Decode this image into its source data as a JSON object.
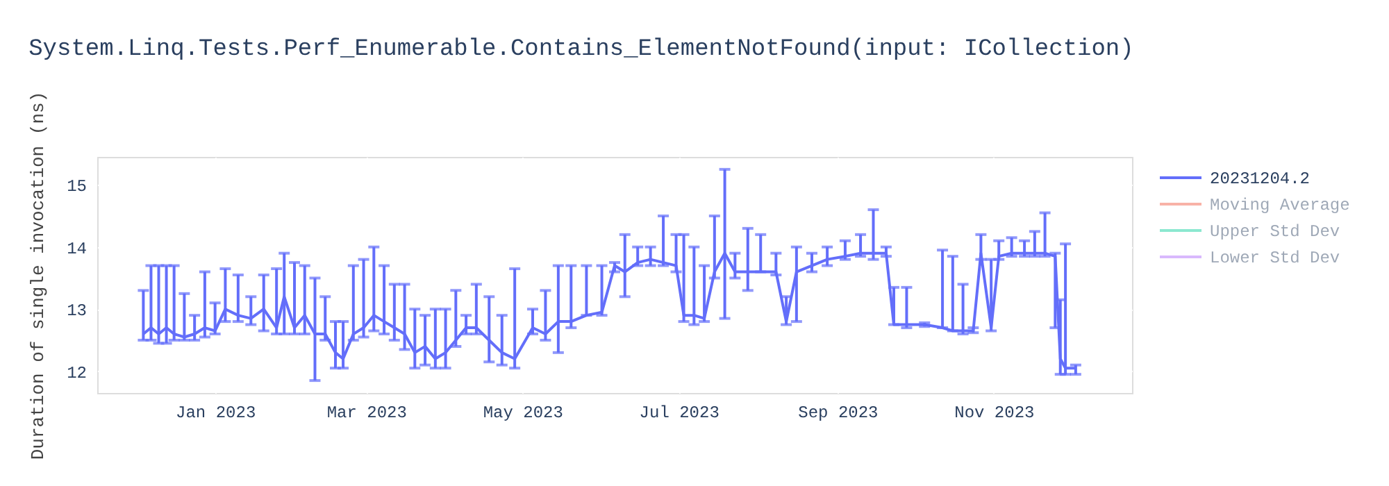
{
  "chart_data": {
    "type": "line",
    "title": "System.Linq.Tests.Perf_Enumerable.Contains_ElementNotFound(input: ICollection)",
    "ylabel": "Duration of single invocation (ns)",
    "x": [
      "2022-12-04",
      "2022-12-07",
      "2022-12-10",
      "2022-12-13",
      "2022-12-16",
      "2022-12-20",
      "2022-12-24",
      "2022-12-28",
      "2023-01-01",
      "2023-01-05",
      "2023-01-10",
      "2023-01-15",
      "2023-01-20",
      "2023-01-25",
      "2023-01-28",
      "2023-02-01",
      "2023-02-05",
      "2023-02-09",
      "2023-02-13",
      "2023-02-17",
      "2023-02-20",
      "2023-02-24",
      "2023-02-28",
      "2023-03-04",
      "2023-03-08",
      "2023-03-12",
      "2023-03-16",
      "2023-03-20",
      "2023-03-24",
      "2023-03-28",
      "2023-04-01",
      "2023-04-05",
      "2023-04-09",
      "2023-04-13",
      "2023-04-18",
      "2023-04-23",
      "2023-04-28",
      "2023-05-05",
      "2023-05-10",
      "2023-05-15",
      "2023-05-20",
      "2023-05-26",
      "2023-06-01",
      "2023-06-06",
      "2023-06-10",
      "2023-06-15",
      "2023-06-20",
      "2023-06-25",
      "2023-06-30",
      "2023-07-03",
      "2023-07-07",
      "2023-07-11",
      "2023-07-15",
      "2023-07-19",
      "2023-07-23",
      "2023-07-28",
      "2023-08-02",
      "2023-08-08",
      "2023-08-12",
      "2023-08-16",
      "2023-08-22",
      "2023-08-28",
      "2023-09-04",
      "2023-09-10",
      "2023-09-15",
      "2023-09-20",
      "2023-09-23",
      "2023-09-28",
      "2023-10-05",
      "2023-10-12",
      "2023-10-16",
      "2023-10-20",
      "2023-10-24",
      "2023-10-27",
      "2023-10-31",
      "2023-11-03",
      "2023-11-08",
      "2023-11-13",
      "2023-11-17",
      "2023-11-21",
      "2023-11-25",
      "2023-11-27",
      "2023-11-29",
      "2023-12-03"
    ],
    "series": [
      {
        "name": "20231204.2",
        "color": "#636efa",
        "values": [
          12.6,
          12.7,
          12.6,
          12.7,
          12.6,
          12.55,
          12.6,
          12.7,
          12.65,
          13.0,
          12.9,
          12.85,
          13.0,
          12.7,
          13.2,
          12.7,
          12.9,
          12.6,
          12.6,
          12.3,
          12.2,
          12.6,
          12.7,
          12.9,
          12.8,
          12.7,
          12.6,
          12.3,
          12.4,
          12.2,
          12.3,
          12.5,
          12.7,
          12.7,
          12.5,
          12.3,
          12.2,
          12.7,
          12.6,
          12.8,
          12.8,
          12.9,
          12.95,
          13.7,
          13.6,
          13.75,
          13.8,
          13.75,
          13.7,
          12.9,
          12.9,
          12.85,
          13.6,
          13.9,
          13.6,
          13.6,
          13.6,
          13.6,
          12.8,
          13.6,
          13.7,
          13.8,
          13.85,
          13.9,
          13.9,
          13.9,
          12.75,
          12.75,
          12.75,
          12.7,
          12.65,
          12.65,
          12.65,
          13.9,
          12.7,
          13.85,
          13.9,
          13.9,
          13.9,
          13.9,
          13.85,
          12.2,
          12.05,
          12.05
        ],
        "errors": [
          [
            12.5,
            13.3
          ],
          [
            12.5,
            13.7
          ],
          [
            12.45,
            13.7
          ],
          [
            12.45,
            13.7
          ],
          [
            12.5,
            13.7
          ],
          [
            12.5,
            13.25
          ],
          [
            12.5,
            12.9
          ],
          [
            12.55,
            13.6
          ],
          [
            12.6,
            13.1
          ],
          [
            12.8,
            13.65
          ],
          [
            12.8,
            13.55
          ],
          [
            12.75,
            13.2
          ],
          [
            12.65,
            13.55
          ],
          [
            12.6,
            13.65
          ],
          [
            12.6,
            13.9
          ],
          [
            12.6,
            13.75
          ],
          [
            12.6,
            13.7
          ],
          [
            11.85,
            13.5
          ],
          [
            12.5,
            13.2
          ],
          [
            12.05,
            12.8
          ],
          [
            12.05,
            12.8
          ],
          [
            12.5,
            13.7
          ],
          [
            12.55,
            13.8
          ],
          [
            12.65,
            14.0
          ],
          [
            12.6,
            13.7
          ],
          [
            12.5,
            13.4
          ],
          [
            12.35,
            13.4
          ],
          [
            12.05,
            13.0
          ],
          [
            12.1,
            12.9
          ],
          [
            12.05,
            13.0
          ],
          [
            12.05,
            13.0
          ],
          [
            12.4,
            13.3
          ],
          [
            12.6,
            12.9
          ],
          [
            12.6,
            13.4
          ],
          [
            12.15,
            13.2
          ],
          [
            12.1,
            12.9
          ],
          [
            12.05,
            13.65
          ],
          [
            12.6,
            13.0
          ],
          [
            12.5,
            13.3
          ],
          [
            12.3,
            13.7
          ],
          [
            12.7,
            13.7
          ],
          [
            12.9,
            13.7
          ],
          [
            12.9,
            13.7
          ],
          [
            13.6,
            13.75
          ],
          [
            13.2,
            14.2
          ],
          [
            13.7,
            14.0
          ],
          [
            13.7,
            14.0
          ],
          [
            13.7,
            14.5
          ],
          [
            13.6,
            14.2
          ],
          [
            12.8,
            14.2
          ],
          [
            12.75,
            14.0
          ],
          [
            12.8,
            13.7
          ],
          [
            13.5,
            14.5
          ],
          [
            12.85,
            15.25
          ],
          [
            13.5,
            13.9
          ],
          [
            13.3,
            14.3
          ],
          [
            13.6,
            14.2
          ],
          [
            13.55,
            13.9
          ],
          [
            12.75,
            13.2
          ],
          [
            12.8,
            14.0
          ],
          [
            13.6,
            13.9
          ],
          [
            13.7,
            14.0
          ],
          [
            13.8,
            14.1
          ],
          [
            13.85,
            14.2
          ],
          [
            13.8,
            14.6
          ],
          [
            13.85,
            14.0
          ],
          [
            12.75,
            13.35
          ],
          [
            12.7,
            13.35
          ],
          [
            12.72,
            12.78
          ],
          [
            12.7,
            13.95
          ],
          [
            12.65,
            13.85
          ],
          [
            12.6,
            13.4
          ],
          [
            12.62,
            12.7
          ],
          [
            13.8,
            14.2
          ],
          [
            12.65,
            13.8
          ],
          [
            13.8,
            14.1
          ],
          [
            13.85,
            14.15
          ],
          [
            13.85,
            14.1
          ],
          [
            13.85,
            14.25
          ],
          [
            13.85,
            14.55
          ],
          [
            12.7,
            13.9
          ],
          [
            11.95,
            13.15
          ],
          [
            11.95,
            14.05
          ],
          [
            11.95,
            12.1
          ]
        ]
      },
      {
        "name": "Moving Average",
        "color": "#ef553b",
        "values": [
          null,
          null,
          null,
          null,
          null,
          null,
          null,
          null,
          null,
          null,
          null,
          null,
          null,
          null,
          null,
          null,
          null,
          null,
          null,
          null,
          null,
          null,
          null,
          null,
          null,
          null,
          null,
          null,
          null,
          null,
          null,
          null,
          null,
          null,
          null,
          null,
          null,
          null,
          null,
          null,
          null,
          null,
          null,
          null,
          null,
          null,
          null,
          null,
          null,
          null,
          null,
          null,
          null,
          null,
          null,
          null,
          null,
          null,
          null,
          null,
          null,
          null,
          null,
          null,
          null,
          null,
          null,
          null,
          null,
          null,
          null,
          null,
          null,
          null,
          null,
          null,
          null,
          null,
          null,
          null,
          null,
          null,
          null,
          null
        ]
      },
      {
        "name": "Upper Std Dev",
        "color": "#00cc96",
        "values": [
          null,
          null,
          null,
          null,
          null,
          null,
          null,
          null,
          null,
          null,
          null,
          null,
          null,
          null,
          null,
          null,
          null,
          null,
          null,
          null,
          null,
          null,
          null,
          null,
          null,
          null,
          null,
          null,
          null,
          null,
          null,
          null,
          null,
          null,
          null,
          null,
          null,
          null,
          null,
          null,
          null,
          null,
          null,
          null,
          null,
          null,
          null,
          null,
          null,
          null,
          null,
          null,
          null,
          null,
          null,
          null,
          null,
          null,
          null,
          null,
          null,
          null,
          null,
          null,
          null,
          null,
          null,
          null,
          null,
          null,
          null,
          null,
          null,
          null,
          null,
          null,
          null,
          null,
          null,
          null,
          null,
          null,
          null,
          null
        ]
      },
      {
        "name": "Lower Std Dev",
        "color": "#ab63fa",
        "values": [
          null,
          null,
          null,
          null,
          null,
          null,
          null,
          null,
          null,
          null,
          null,
          null,
          null,
          null,
          null,
          null,
          null,
          null,
          null,
          null,
          null,
          null,
          null,
          null,
          null,
          null,
          null,
          null,
          null,
          null,
          null,
          null,
          null,
          null,
          null,
          null,
          null,
          null,
          null,
          null,
          null,
          null,
          null,
          null,
          null,
          null,
          null,
          null,
          null,
          null,
          null,
          null,
          null,
          null,
          null,
          null,
          null,
          null,
          null,
          null,
          null,
          null,
          null,
          null,
          null,
          null,
          null,
          null,
          null,
          null,
          null,
          null,
          null,
          null,
          null,
          null,
          null,
          null,
          null,
          null,
          null,
          null,
          null,
          null
        ]
      }
    ],
    "xlim": [
      "2022-11-16",
      "2023-12-25"
    ],
    "xticks": [
      {
        "value": "2023-01-01",
        "label": "Jan 2023"
      },
      {
        "value": "2023-03-01",
        "label": "Mar 2023"
      },
      {
        "value": "2023-05-01",
        "label": "May 2023"
      },
      {
        "value": "2023-07-01",
        "label": "Jul 2023"
      },
      {
        "value": "2023-09-01",
        "label": "Sep 2023"
      },
      {
        "value": "2023-11-01",
        "label": "Nov 2023"
      }
    ],
    "ylim": [
      11.65,
      15.45
    ],
    "yticks": [
      12,
      13,
      14,
      15
    ],
    "grid": true,
    "legend": "top right"
  }
}
